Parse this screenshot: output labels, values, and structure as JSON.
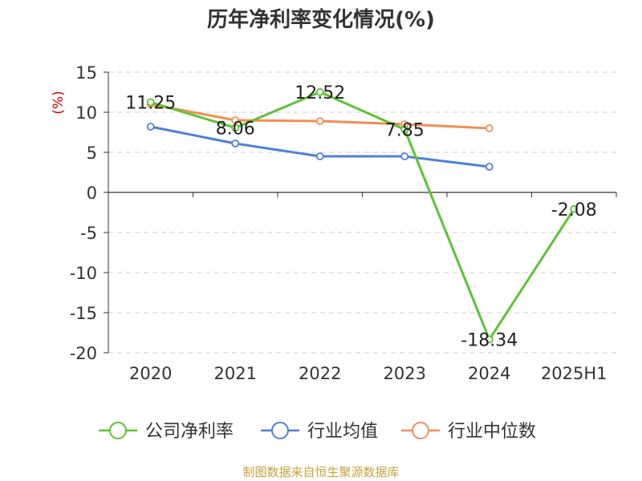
{
  "chart_data": {
    "type": "line",
    "title": "历年净利率变化情况(%)",
    "ylabel": "(%)",
    "categories": [
      "2020",
      "2021",
      "2022",
      "2023",
      "2024",
      "2025H1"
    ],
    "ylim": [
      -20,
      15
    ],
    "yticks": [
      15,
      10,
      5,
      0,
      -5,
      -10,
      -15,
      -20
    ],
    "grid": true,
    "legend_position": "bottom",
    "series": [
      {
        "name": "公司净利率",
        "color": "#5cc334",
        "values": [
          11.25,
          8.06,
          12.52,
          7.85,
          -18.34,
          -2.08
        ],
        "labels": [
          "11.25",
          "8.06",
          "12.52",
          "7.85",
          "-18.34",
          "-2.08"
        ]
      },
      {
        "name": "行业均值",
        "color": "#4f7fd9",
        "values": [
          8.2,
          6.1,
          4.5,
          4.5,
          3.2,
          null
        ]
      },
      {
        "name": "行业中位数",
        "color": "#f28e56",
        "values": [
          11.0,
          9.0,
          8.9,
          8.5,
          8.0,
          null
        ]
      }
    ],
    "source": "制图数据来自恒生聚源数据库",
    "colors": {
      "unit_label": "#cc0000",
      "source": "#c8a040",
      "axis": "#333333",
      "grid": "#cccccc"
    }
  }
}
